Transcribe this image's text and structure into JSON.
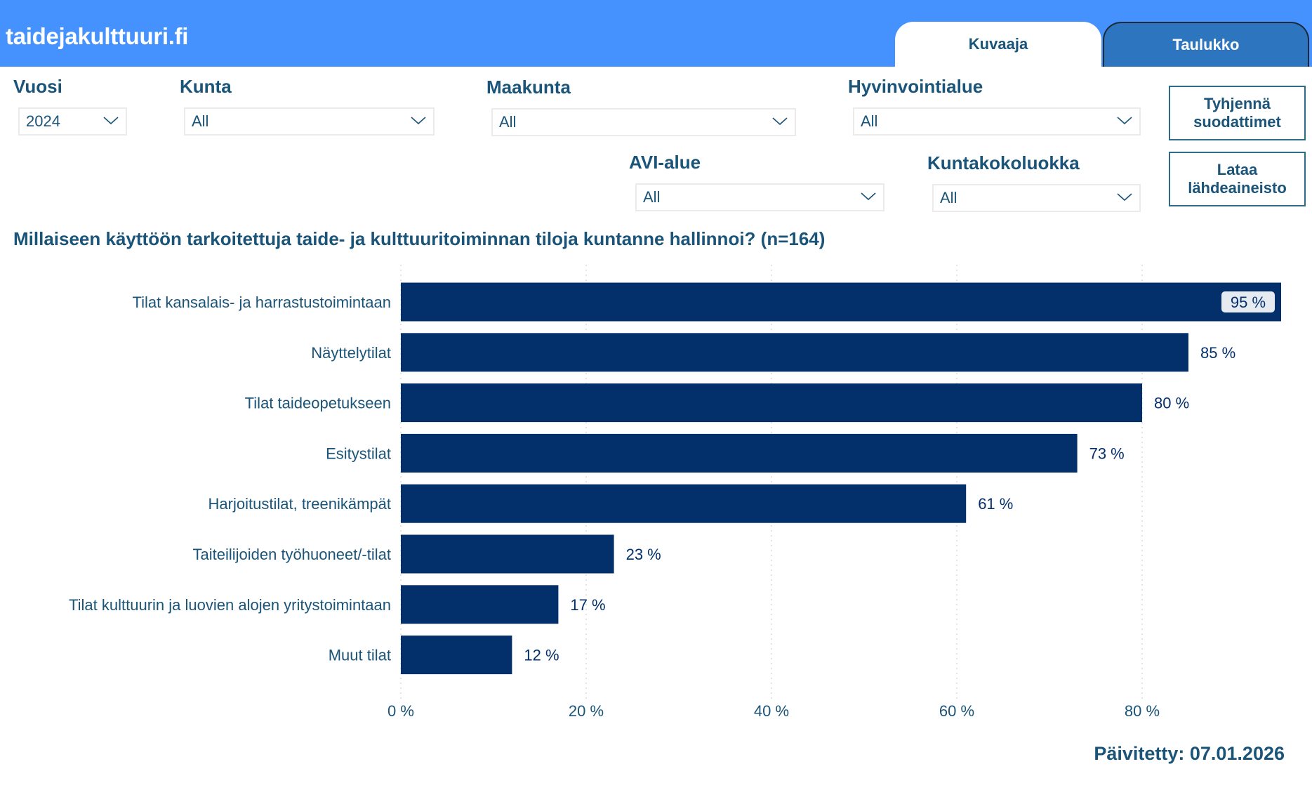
{
  "header": {
    "site_title": "taidejakulttuuri.fi",
    "tabs": [
      {
        "label": "Kuvaaja",
        "active": true
      },
      {
        "label": "Taulukko",
        "active": false
      }
    ]
  },
  "filters": {
    "vuosi": {
      "label": "Vuosi",
      "value": "2024"
    },
    "kunta": {
      "label": "Kunta",
      "value": "All"
    },
    "maakunta": {
      "label": "Maakunta",
      "value": "All"
    },
    "hyvinvointialue": {
      "label": "Hyvinvointialue",
      "value": "All"
    },
    "avi_alue": {
      "label": "AVI-alue",
      "value": "All"
    },
    "kuntakokoluokka": {
      "label": "Kuntakokoluokka",
      "value": "All"
    }
  },
  "buttons": {
    "clear_filters": {
      "line1": "Tyhjennä",
      "line2": "suodattimet"
    },
    "download_source": {
      "line1": "Lataa",
      "line2": "lähdeaineisto"
    }
  },
  "colors": {
    "header": "#4592FF",
    "bar": "#03306B",
    "text": "#1B5479",
    "inactive_tab": "#2E75C0"
  },
  "chart_data": {
    "type": "bar",
    "orientation": "horizontal",
    "title": "Millaiseen käyttöön tarkoitettuja taide- ja kulttuuritoiminnan tiloja kuntanne hallinnoi? (n=164)",
    "categories": [
      "Tilat kansalais- ja harrastustoimintaan",
      "Näyttelytilat",
      "Tilat taideopetukseen",
      "Esitystilat",
      "Harjoitustilat, treenikämpät",
      "Taiteilijoiden työhuoneet/-tilat",
      "Tilat kulttuurin ja luovien alojen yritystoimintaan",
      "Muut tilat"
    ],
    "values": [
      95,
      85,
      80,
      73,
      61,
      23,
      17,
      12
    ],
    "value_labels": [
      "95 %",
      "85 %",
      "80 %",
      "73 %",
      "61 %",
      "23 %",
      "17 %",
      "12 %"
    ],
    "xlabel": "",
    "ylabel": "",
    "xlim": [
      0,
      95
    ],
    "xticks": [
      0,
      20,
      40,
      60,
      80
    ],
    "xtick_labels": [
      "0 %",
      "20 %",
      "40 %",
      "60 %",
      "80 %"
    ],
    "grid": true
  },
  "footer": {
    "updated": "Päivitetty: 07.01.2026"
  }
}
